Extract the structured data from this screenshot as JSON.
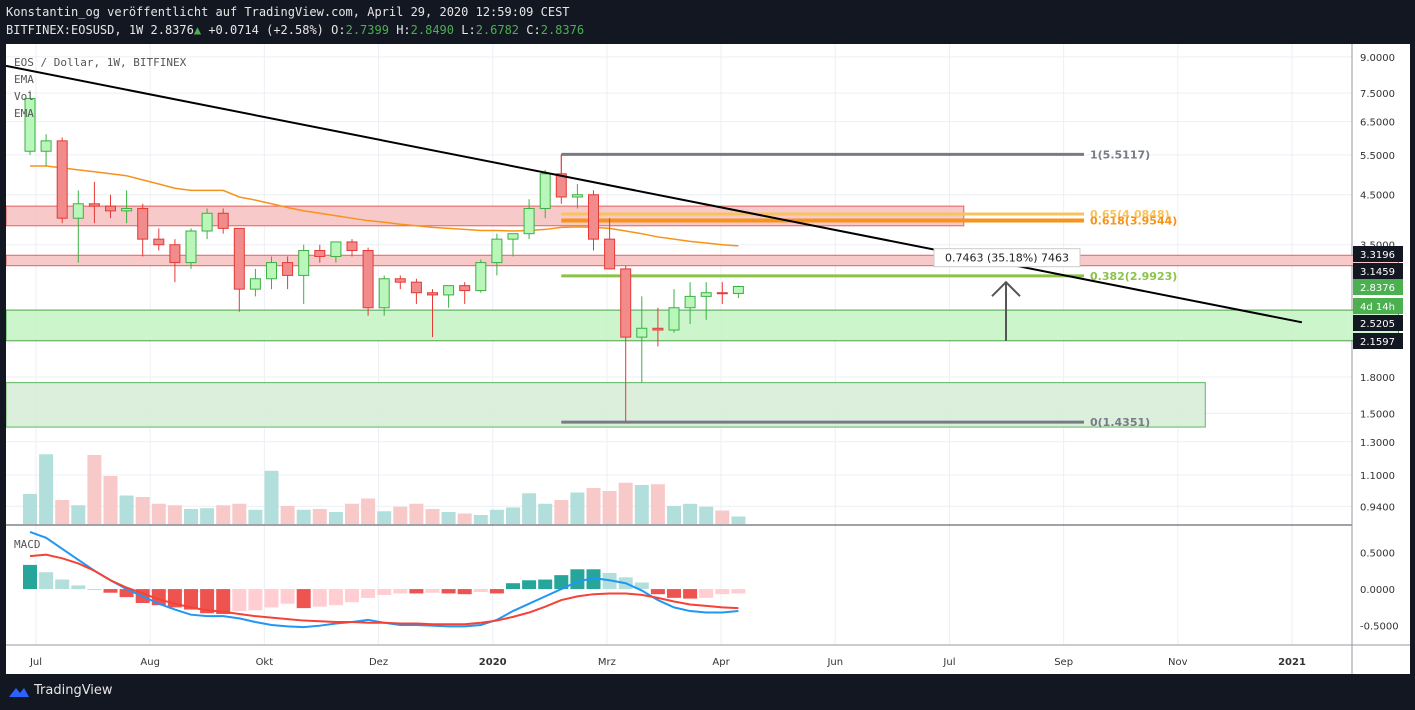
{
  "header": {
    "line1": "Konstantin_og veröffentlicht auf TradingView.com, April 29, 2020 12:59:09 CEST",
    "symbol": "BITFINEX:EOSUSD, 1W 2.8376",
    "change": "+0.0714 (+2.58%)",
    "o_label": "O:",
    "o": "2.7399",
    "h_label": "H:",
    "h": "2.8490",
    "l_label": "L:",
    "l": "2.6782",
    "c_label": "C:",
    "c": "2.8376"
  },
  "legend": {
    "title": "EOS / Dollar, 1W, BITFINEX",
    "ema1": "EMA",
    "vol": "Vol",
    "ema2": "EMA",
    "macd": "MACD"
  },
  "footer": {
    "brand": "TradingView"
  },
  "colors": {
    "up": "#26a69a",
    "down": "#ef5350",
    "up_body": "#b9f6b9",
    "down_body": "#f28b8b",
    "ema": "#f7931a",
    "trend": "#000000",
    "macd": "#2196f3",
    "signal": "#f44336"
  },
  "chart_data": [
    {
      "type": "candlestick",
      "title": "EOS / Dollar, 1W, BITFINEX",
      "y_scale": "log",
      "ylim": [
        0.86,
        9.6
      ],
      "y_ticks": [
        "9.0000",
        "7.5000",
        "6.5000",
        "5.5000",
        "4.5000",
        "3.5000",
        "2.5205",
        "1.8000",
        "1.5000",
        "1.3000",
        "1.1000",
        "0.9400"
      ],
      "x_labels": [
        "Jul",
        "Aug",
        "Okt",
        "Dez",
        "2020",
        "Mrz",
        "Apr",
        "Jun",
        "Jul",
        "Sep",
        "Nov",
        "2021"
      ],
      "price_tags": [
        {
          "value": "3.3196",
          "style": "dark"
        },
        {
          "value": "3.1459",
          "style": "dark"
        },
        {
          "value": "2.8376",
          "style": "green"
        },
        {
          "value": "4d 14h",
          "style": "green"
        },
        {
          "value": "2.5205",
          "style": "dark"
        },
        {
          "value": "2.1597",
          "style": "dark"
        }
      ],
      "candles": [
        {
          "o": 5.6,
          "h": 7.6,
          "l": 5.5,
          "c": 7.3
        },
        {
          "o": 5.6,
          "h": 6.1,
          "l": 5.2,
          "c": 5.9
        },
        {
          "o": 5.9,
          "h": 6.0,
          "l": 3.9,
          "c": 4.0
        },
        {
          "o": 4.0,
          "h": 4.6,
          "l": 3.2,
          "c": 4.3
        },
        {
          "o": 4.3,
          "h": 4.8,
          "l": 3.9,
          "c": 4.25
        },
        {
          "o": 4.25,
          "h": 4.5,
          "l": 4.0,
          "c": 4.15
        },
        {
          "o": 4.15,
          "h": 4.6,
          "l": 3.9,
          "c": 4.2
        },
        {
          "o": 4.2,
          "h": 4.3,
          "l": 3.3,
          "c": 3.6
        },
        {
          "o": 3.6,
          "h": 3.8,
          "l": 3.4,
          "c": 3.5
        },
        {
          "o": 3.5,
          "h": 3.6,
          "l": 2.9,
          "c": 3.2
        },
        {
          "o": 3.2,
          "h": 3.8,
          "l": 3.1,
          "c": 3.75
        },
        {
          "o": 3.75,
          "h": 4.2,
          "l": 3.6,
          "c": 4.1
        },
        {
          "o": 4.1,
          "h": 4.2,
          "l": 3.7,
          "c": 3.8
        },
        {
          "o": 3.8,
          "h": 3.8,
          "l": 2.5,
          "c": 2.8
        },
        {
          "o": 2.8,
          "h": 3.1,
          "l": 2.7,
          "c": 2.95
        },
        {
          "o": 2.95,
          "h": 3.3,
          "l": 2.8,
          "c": 3.2
        },
        {
          "o": 3.2,
          "h": 3.3,
          "l": 2.8,
          "c": 3.0
        },
        {
          "o": 3.0,
          "h": 3.5,
          "l": 2.6,
          "c": 3.4
        },
        {
          "o": 3.4,
          "h": 3.5,
          "l": 3.2,
          "c": 3.3
        },
        {
          "o": 3.3,
          "h": 3.5,
          "l": 3.2,
          "c": 3.55
        },
        {
          "o": 3.55,
          "h": 3.6,
          "l": 3.3,
          "c": 3.4
        },
        {
          "o": 3.4,
          "h": 3.45,
          "l": 2.45,
          "c": 2.55
        },
        {
          "o": 2.55,
          "h": 3.0,
          "l": 2.45,
          "c": 2.95
        },
        {
          "o": 2.95,
          "h": 3.0,
          "l": 2.8,
          "c": 2.9
        },
        {
          "o": 2.9,
          "h": 2.95,
          "l": 2.6,
          "c": 2.75
        },
        {
          "o": 2.75,
          "h": 2.8,
          "l": 2.2,
          "c": 2.72
        },
        {
          "o": 2.72,
          "h": 2.8,
          "l": 2.55,
          "c": 2.85
        },
        {
          "o": 2.85,
          "h": 2.9,
          "l": 2.6,
          "c": 2.78
        },
        {
          "o": 2.78,
          "h": 3.25,
          "l": 2.75,
          "c": 3.2
        },
        {
          "o": 3.2,
          "h": 3.7,
          "l": 3.0,
          "c": 3.6
        },
        {
          "o": 3.6,
          "h": 3.7,
          "l": 3.3,
          "c": 3.7
        },
        {
          "o": 3.7,
          "h": 4.4,
          "l": 3.6,
          "c": 4.2
        },
        {
          "o": 4.2,
          "h": 5.1,
          "l": 4.0,
          "c": 5.0
        },
        {
          "o": 5.0,
          "h": 5.51,
          "l": 4.3,
          "c": 4.45
        },
        {
          "o": 4.45,
          "h": 4.75,
          "l": 4.2,
          "c": 4.5
        },
        {
          "o": 4.5,
          "h": 4.6,
          "l": 3.4,
          "c": 3.6
        },
        {
          "o": 3.6,
          "h": 4.0,
          "l": 3.1,
          "c": 3.1
        },
        {
          "o": 3.1,
          "h": 3.15,
          "l": 1.44,
          "c": 2.2
        },
        {
          "o": 2.2,
          "h": 2.7,
          "l": 1.75,
          "c": 2.3
        },
        {
          "o": 2.3,
          "h": 2.55,
          "l": 2.1,
          "c": 2.28
        },
        {
          "o": 2.28,
          "h": 2.8,
          "l": 2.25,
          "c": 2.55
        },
        {
          "o": 2.55,
          "h": 2.9,
          "l": 2.35,
          "c": 2.7
        },
        {
          "o": 2.7,
          "h": 2.9,
          "l": 2.4,
          "c": 2.75
        },
        {
          "o": 2.75,
          "h": 2.9,
          "l": 2.6,
          "c": 2.74
        },
        {
          "o": 2.7399,
          "h": 2.849,
          "l": 2.6782,
          "c": 2.8376
        }
      ],
      "ema": [
        5.2,
        5.2,
        5.15,
        5.1,
        5.05,
        5.0,
        4.95,
        4.85,
        4.75,
        4.65,
        4.6,
        4.6,
        4.6,
        4.45,
        4.38,
        4.3,
        4.22,
        4.15,
        4.1,
        4.05,
        4.0,
        3.95,
        3.92,
        3.88,
        3.85,
        3.82,
        3.8,
        3.78,
        3.76,
        3.76,
        3.75,
        3.76,
        3.78,
        3.82,
        3.83,
        3.82,
        3.8,
        3.75,
        3.7,
        3.64,
        3.6,
        3.56,
        3.53,
        3.5,
        3.48
      ],
      "volume": [
        0.4,
        0.93,
        0.32,
        0.25,
        0.92,
        0.64,
        0.38,
        0.36,
        0.27,
        0.25,
        0.2,
        0.21,
        0.25,
        0.27,
        0.19,
        0.71,
        0.24,
        0.19,
        0.2,
        0.16,
        0.27,
        0.34,
        0.17,
        0.23,
        0.27,
        0.2,
        0.16,
        0.14,
        0.12,
        0.19,
        0.22,
        0.41,
        0.27,
        0.32,
        0.42,
        0.48,
        0.44,
        0.55,
        0.52,
        0.53,
        0.24,
        0.27,
        0.23,
        0.18,
        0.1
      ],
      "trendline": {
        "from": {
          "i": 0,
          "y": 8.6
        },
        "to": {
          "i": 79,
          "y": 2.37
        }
      },
      "zones": [
        {
          "from_i": 0,
          "to_i": 58,
          "low": 3.85,
          "high": 4.25,
          "color": "red"
        },
        {
          "from_i": 0,
          "to_i": 85,
          "low": 3.15,
          "high": 3.32,
          "color": "red"
        },
        {
          "from_i": 0,
          "to_i": 85,
          "low": 2.16,
          "high": 2.52,
          "color": "green"
        },
        {
          "from_i": 0,
          "to_i": 73,
          "low": 1.4,
          "high": 1.75,
          "color": "lightgreen"
        }
      ],
      "fib_levels": [
        {
          "label": "1(5.5117)",
          "value": 5.5117,
          "color": "#787b86"
        },
        {
          "label": "0.65(4.0848)",
          "value": 4.0848,
          "color": "#f7c35f"
        },
        {
          "label": "0.618(3.9544)",
          "value": 3.9544,
          "color": "#f7931a"
        },
        {
          "label": "0.382(2.9923)",
          "value": 2.9923,
          "color": "#8bc34a"
        },
        {
          "label": "0(1.4351)",
          "value": 1.4351,
          "color": "#787b86"
        }
      ],
      "measure": {
        "label": "0.7463 (35.18%) 7463",
        "from": 2.1597,
        "to": 2.9
      }
    },
    {
      "type": "line",
      "title": "MACD",
      "y_ticks": [
        "0.5000",
        "0.0000",
        "-0.5000"
      ],
      "ylim": [
        -0.75,
        0.82
      ],
      "series": [
        {
          "name": "MACD",
          "values": [
            0.78,
            0.7,
            0.55,
            0.4,
            0.25,
            0.12,
            0.0,
            -0.1,
            -0.2,
            -0.28,
            -0.35,
            -0.37,
            -0.37,
            -0.4,
            -0.45,
            -0.49,
            -0.51,
            -0.52,
            -0.5,
            -0.47,
            -0.45,
            -0.42,
            -0.46,
            -0.49,
            -0.49,
            -0.5,
            -0.51,
            -0.51,
            -0.49,
            -0.42,
            -0.3,
            -0.2,
            -0.1,
            0.0,
            0.1,
            0.15,
            0.12,
            0.08,
            -0.02,
            -0.15,
            -0.25,
            -0.3,
            -0.32,
            -0.32,
            -0.3
          ]
        },
        {
          "name": "Signal",
          "values": [
            0.45,
            0.47,
            0.42,
            0.35,
            0.25,
            0.12,
            0.02,
            -0.06,
            -0.14,
            -0.2,
            -0.25,
            -0.29,
            -0.31,
            -0.34,
            -0.37,
            -0.39,
            -0.41,
            -0.43,
            -0.44,
            -0.45,
            -0.45,
            -0.46,
            -0.46,
            -0.47,
            -0.47,
            -0.48,
            -0.48,
            -0.48,
            -0.46,
            -0.43,
            -0.38,
            -0.32,
            -0.24,
            -0.15,
            -0.1,
            -0.07,
            -0.06,
            -0.06,
            -0.08,
            -0.12,
            -0.17,
            -0.21,
            -0.23,
            -0.25,
            -0.26
          ]
        },
        {
          "name": "Histogram",
          "values": [
            0.33,
            0.23,
            0.13,
            0.05,
            0.0,
            -0.05,
            -0.11,
            -0.19,
            -0.22,
            -0.25,
            -0.28,
            -0.33,
            -0.34,
            -0.3,
            -0.29,
            -0.25,
            -0.2,
            -0.26,
            -0.24,
            -0.22,
            -0.18,
            -0.12,
            -0.08,
            -0.06,
            -0.06,
            -0.05,
            -0.06,
            -0.07,
            -0.04,
            -0.06,
            0.08,
            0.12,
            0.13,
            0.19,
            0.27,
            0.27,
            0.22,
            0.16,
            0.09,
            -0.07,
            -0.12,
            -0.13,
            -0.12,
            -0.07,
            -0.06
          ]
        }
      ]
    }
  ]
}
